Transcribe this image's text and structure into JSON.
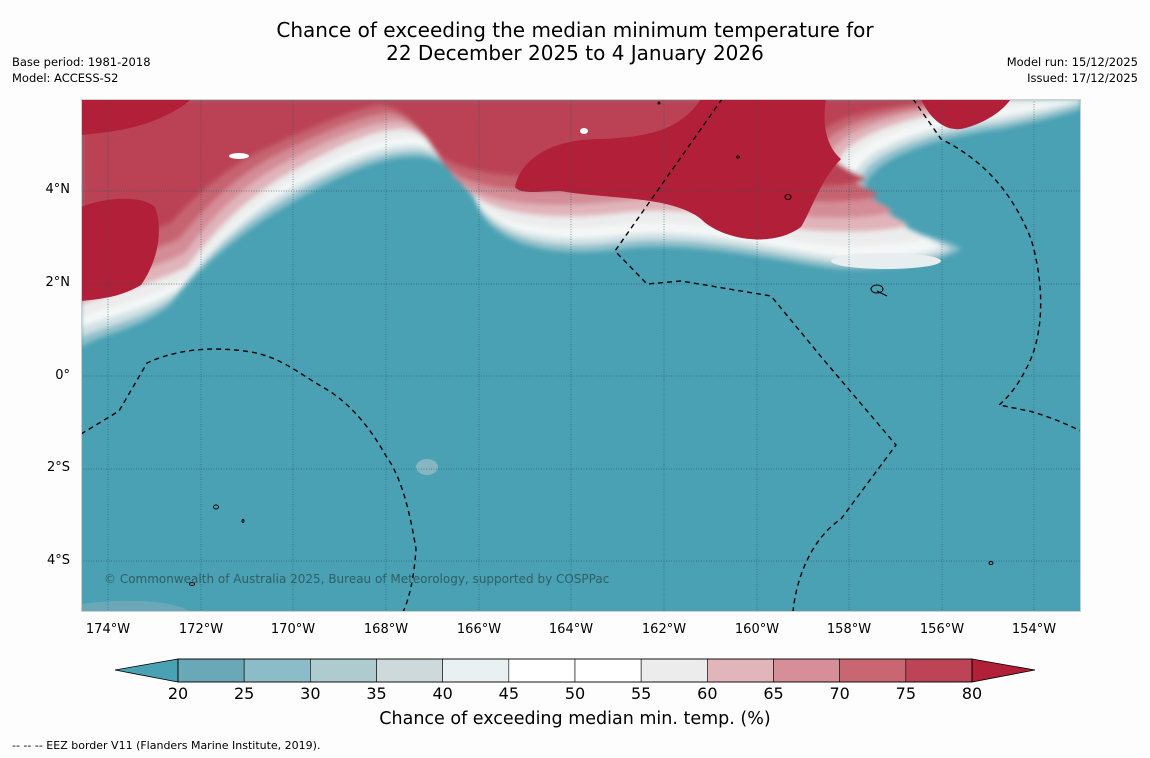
{
  "header": {
    "title_line1": "Chance of exceeding the median minimum temperature for",
    "title_line2": "22 December 2025 to 4 January 2026",
    "base_period": "Base period: 1981-2018",
    "model": "Model: ACCESS-S2",
    "model_run": "Model run: 15/12/2025",
    "issued": "Issued: 17/12/2025"
  },
  "map": {
    "lat_labels": [
      "4°N",
      "2°N",
      "0°",
      "2°S",
      "4°S"
    ],
    "lon_labels": [
      "174°W",
      "172°W",
      "170°W",
      "168°W",
      "166°W",
      "164°W",
      "162°W",
      "160°W",
      "158°W",
      "156°W",
      "154°W"
    ],
    "copyright": "© Commonwealth of Australia 2025, Bureau of Meteorology, supported by COSPPac",
    "ocean_color": "#4aa1b3"
  },
  "colorbar": {
    "ticks": [
      "20",
      "25",
      "30",
      "35",
      "40",
      "45",
      "50",
      "55",
      "60",
      "65",
      "70",
      "75",
      "80"
    ],
    "colors": [
      "#6aa8b8",
      "#8bbcc8",
      "#aecbd0",
      "#cdd9da",
      "#e9f0f1",
      "#ffffff",
      "#ffffff",
      "#ececec",
      "#e2b5bb",
      "#d68e98",
      "#c86671",
      "#bd4456"
    ],
    "low_color": "#4aa1b3",
    "high_color": "#b21f38",
    "title": "Chance of exceeding median min. temp. (%)"
  },
  "footnote": "--  --  -- EEZ border V11 (Flanders Marine Institute, 2019)."
}
